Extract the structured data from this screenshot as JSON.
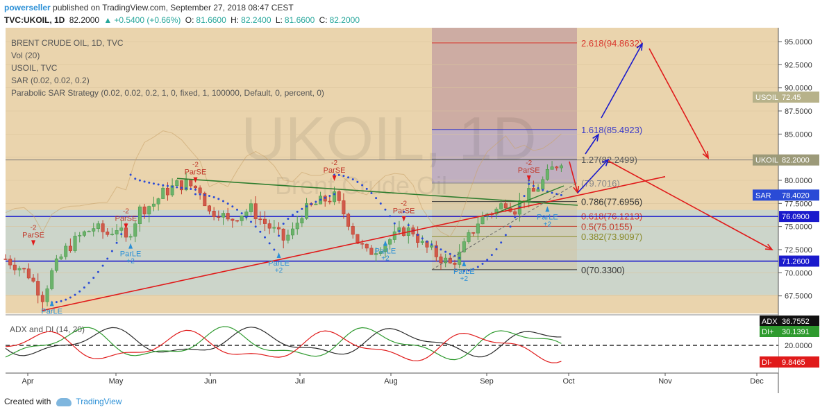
{
  "header": {
    "author": "powerseller",
    "published": "published on TradingView.com, September 27, 2018 08:47 CEST",
    "symbol": "TVC:UKOIL, 1D",
    "last": "82.2000",
    "change": "+0.5400 (+0.66%)",
    "ohlc": {
      "o_label": "O:",
      "o": "81.6600",
      "h_label": "H:",
      "h": "82.2400",
      "l_label": "L:",
      "l": "81.6600",
      "c_label": "C:",
      "c": "82.2000"
    }
  },
  "legend": [
    "BRENT CRUDE OIL, 1D, TVC",
    "Vol (20)",
    "USOIL, TVC",
    "SAR (0.02, 0.02, 0.2)",
    "Parabolic SAR Strategy (0.02, 0.02, 0.2, 1, 0, fixed, 1, 100000, Default, 0, percent, 0)"
  ],
  "watermark": {
    "main": "UKOIL, 1D",
    "sub": "Brent Crude Oil"
  },
  "chart_data": {
    "type": "candlestick",
    "title": "BRENT CRUDE OIL, 1D, TVC",
    "y_ticks": [
      "95.0000",
      "92.5000",
      "90.0000",
      "87.5000",
      "85.0000",
      "82.5000",
      "80.0000",
      "77.5000",
      "75.0000",
      "72.5000",
      "70.0000",
      "67.5000"
    ],
    "y_tick_values": [
      95,
      92.5,
      90,
      87.5,
      85,
      82.5,
      80,
      77.5,
      75,
      72.5,
      70,
      67.5
    ],
    "ylim": [
      65.6,
      96.5
    ],
    "x_ticks": [
      "Apr",
      "May",
      "Jun",
      "Jul",
      "Aug",
      "Sep",
      "Oct",
      "Nov",
      "Dec"
    ],
    "price_path": [
      [
        0,
        71.5
      ],
      [
        3,
        70.6
      ],
      [
        5,
        69.8
      ],
      [
        8,
        67.4
      ],
      [
        10,
        70.0
      ],
      [
        13,
        72.5
      ],
      [
        16,
        73.9
      ],
      [
        19,
        74.9
      ],
      [
        22,
        74.2
      ],
      [
        24,
        74.9
      ],
      [
        26,
        73.5
      ],
      [
        29,
        76.8
      ],
      [
        32,
        77.5
      ],
      [
        34,
        78.6
      ],
      [
        37,
        79.5
      ],
      [
        39,
        79.6
      ],
      [
        42,
        79.0
      ],
      [
        44,
        76.5
      ],
      [
        46,
        76.7
      ],
      [
        48,
        75.5
      ],
      [
        50,
        76.2
      ],
      [
        53,
        76.9
      ],
      [
        55,
        75.8
      ],
      [
        58,
        74.5
      ],
      [
        60,
        73.6
      ],
      [
        62,
        74.4
      ],
      [
        64,
        76.5
      ],
      [
        67,
        77.4
      ],
      [
        69,
        77.9
      ],
      [
        71,
        78.2
      ],
      [
        74,
        75.6
      ],
      [
        76,
        73.4
      ],
      [
        78,
        72.1
      ],
      [
        80,
        72.6
      ],
      [
        82,
        73.3
      ],
      [
        84,
        73.9
      ],
      [
        86,
        74.6
      ],
      [
        88,
        74.5
      ],
      [
        90,
        73.0
      ],
      [
        92,
        72.3
      ],
      [
        94,
        71.6
      ],
      [
        96,
        70.9
      ],
      [
        98,
        71.9
      ],
      [
        100,
        73.8
      ],
      [
        102,
        75.5
      ],
      [
        104,
        76.4
      ],
      [
        106,
        76.8
      ],
      [
        108,
        77.7
      ],
      [
        110,
        76.9
      ],
      [
        112,
        78.2
      ],
      [
        114,
        78.7
      ],
      [
        116,
        79.9
      ],
      [
        118,
        81.2
      ],
      [
        120,
        82.2
      ]
    ],
    "fib_levels": [
      {
        "label": "0(70.3300)",
        "value": 70.33,
        "color": "#333333"
      },
      {
        "label": "0.382(73.9097)",
        "value": 73.91,
        "color": "#8a8a2a"
      },
      {
        "label": "0.5(75.0155)",
        "value": 75.02,
        "color": "#c0392b"
      },
      {
        "label": "0.618(76.1213)",
        "value": 76.12,
        "color": "#d9352b"
      },
      {
        "label": "0.786(77.6956)",
        "value": 77.7,
        "color": "#333333"
      },
      {
        "label": "(79.7016)",
        "value": 79.7,
        "color": "#888888"
      },
      {
        "label": "1.27(82.2499)",
        "value": 82.25,
        "color": "#555555"
      },
      {
        "label": "1.618(85.4923)",
        "value": 85.49,
        "color": "#3a3ac8"
      },
      {
        "label": "2.618(94.8632)",
        "value": 94.86,
        "color": "#d9352b"
      }
    ],
    "horizontal_lines": [
      {
        "value": 76.09,
        "color": "#1a1acc"
      },
      {
        "value": 71.26,
        "color": "#1a1acc"
      }
    ],
    "signals": [
      {
        "label": "ParSE",
        "sub": "-2",
        "bar": 6,
        "y": 73.6,
        "dir": "short"
      },
      {
        "label": "ParLE",
        "sub": "+2",
        "bar": 10,
        "y": 67.0,
        "dir": "long"
      },
      {
        "label": "ParSE",
        "sub": "-2",
        "bar": 26,
        "y": 75.4,
        "dir": "short"
      },
      {
        "label": "ParLE",
        "sub": "+2",
        "bar": 27,
        "y": 73.2,
        "dir": "long"
      },
      {
        "label": "ParSE",
        "sub": "-2",
        "bar": 41,
        "y": 80.4,
        "dir": "short"
      },
      {
        "label": "ParLE",
        "sub": "+2",
        "bar": 59,
        "y": 72.2,
        "dir": "long"
      },
      {
        "label": "ParSE",
        "sub": "-2",
        "bar": 71,
        "y": 80.6,
        "dir": "short"
      },
      {
        "label": "ParLE",
        "sub": "+2",
        "bar": 82,
        "y": 73.5,
        "dir": "long"
      },
      {
        "label": "ParSE",
        "sub": "-2",
        "bar": 86,
        "y": 76.2,
        "dir": "short"
      },
      {
        "label": "ParLE",
        "sub": "+2",
        "bar": 99,
        "y": 71.3,
        "dir": "long"
      },
      {
        "label": "ParSE",
        "sub": "-2",
        "bar": 113,
        "y": 80.6,
        "dir": "short"
      },
      {
        "label": "ParLE",
        "sub": "+2",
        "bar": 117,
        "y": 77.2,
        "dir": "long"
      }
    ],
    "right_labels": [
      {
        "label": "USOIL",
        "value": "72.45",
        "y": 89.0,
        "bg": "#b7b28a"
      },
      {
        "label": "UKOIL",
        "value": "82.2000",
        "y": 82.2,
        "bg": "#9c9a79"
      },
      {
        "label": "SAR",
        "value": "78.4020",
        "y": 78.4,
        "bg": "#2a4bd6"
      },
      {
        "label": "",
        "value": "76.0900",
        "y": 76.09,
        "bg": "#1a1acc"
      },
      {
        "label": "",
        "value": "71.2600",
        "y": 71.26,
        "bg": "#1a1acc"
      }
    ],
    "adx_panel": {
      "title": "ADX and DI (14, 20)",
      "threshold_label": "20.0000",
      "adx": {
        "name": "ADX",
        "value": "36.7552"
      },
      "di_plus": {
        "name": "DI+",
        "value": "30.1391"
      },
      "di_minus": {
        "name": "DI-",
        "value": "9.8465"
      }
    }
  },
  "footer": {
    "created": "Created with",
    "brand": "TradingView"
  }
}
